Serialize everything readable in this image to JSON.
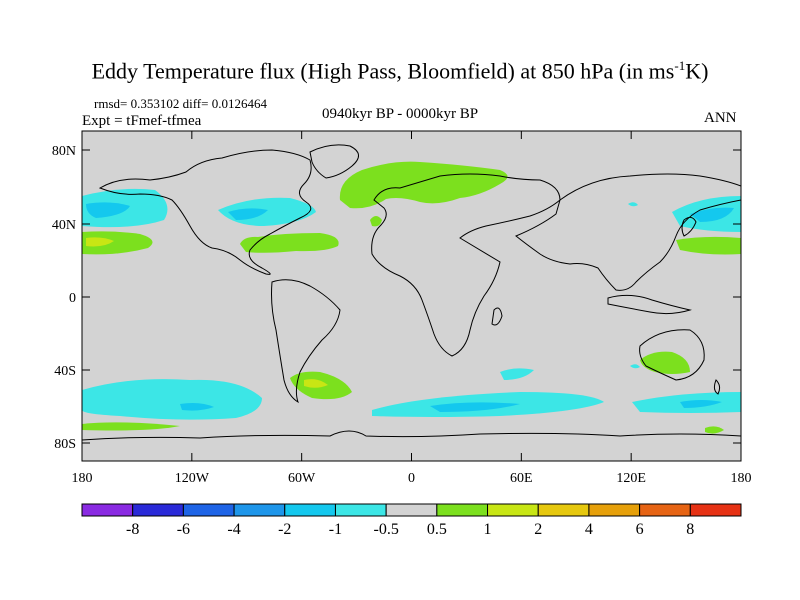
{
  "title": {
    "main": "Eddy Temperature flux (High Pass, Bloomfield) at 850 hPa (in ms",
    "sup": "-1",
    "end": "K)"
  },
  "stats": "rmsd= 0.353102 diff= 0.0126464",
  "experiment": "Expt = tFmef-tfmea",
  "period": "0940kyr BP - 0000kyr BP",
  "season": "ANN",
  "map": {
    "lat_labels": [
      "80N",
      "40N",
      "0",
      "40S",
      "80S"
    ],
    "lon_labels": [
      "180",
      "120W",
      "60W",
      "0",
      "60E",
      "120E",
      "180"
    ],
    "background_color": "#d3d3d3"
  },
  "colorbar": {
    "colors": [
      "#8a2be2",
      "#2a2ad8",
      "#1e64e6",
      "#1e96ea",
      "#14c8ee",
      "#3ce6e6",
      "#d3d3d3",
      "#7ce01e",
      "#c8e614",
      "#e6c80f",
      "#e6a00a",
      "#e66414",
      "#e63214"
    ],
    "labels": [
      "-8",
      "-6",
      "-4",
      "-2",
      "-1",
      "-0.5",
      "0.5",
      "1",
      "2",
      "4",
      "6",
      "8"
    ]
  }
}
